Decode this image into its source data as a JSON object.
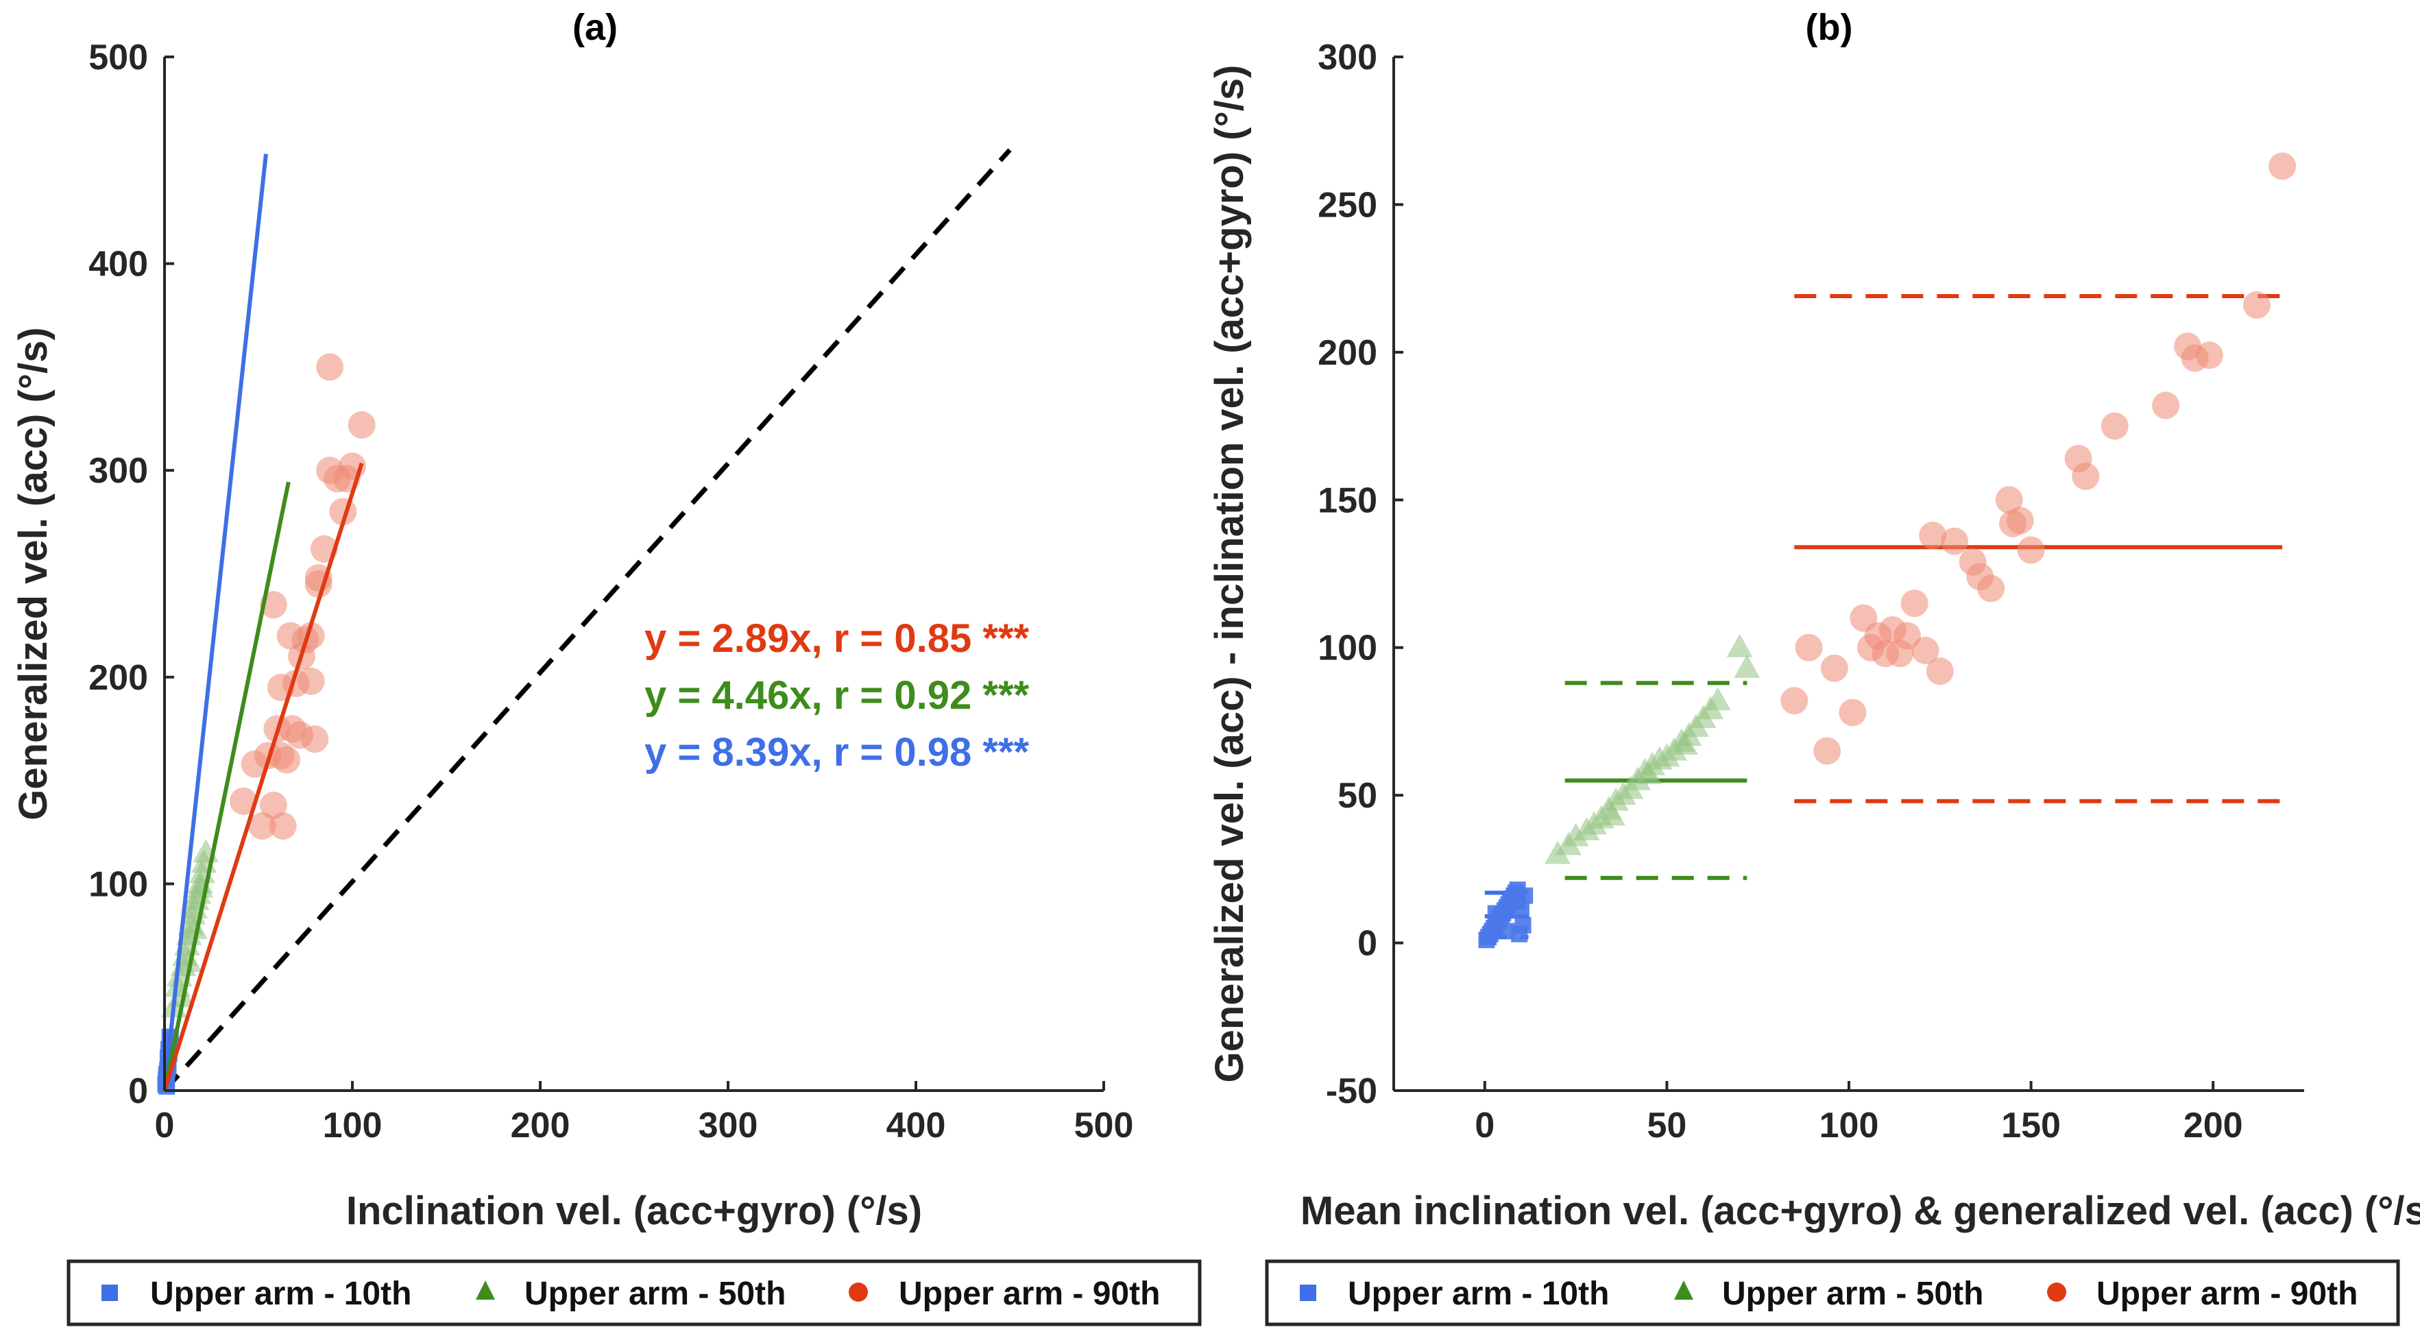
{
  "colors": {
    "p10": "#3f6fe6",
    "p50": "#3e8c1c",
    "p90": "#e03a12",
    "p10_light": "#4a78ea",
    "p50_light": "#92c27f",
    "p90_light": "#ef8a74",
    "axis": "#262626"
  },
  "legend": {
    "items": [
      {
        "key": "p10",
        "marker": "square",
        "label": "Upper arm - 10th"
      },
      {
        "key": "p50",
        "marker": "triangle",
        "label": "Upper arm - 50th"
      },
      {
        "key": "p90",
        "marker": "circle",
        "label": "Upper arm - 90th"
      }
    ]
  },
  "chart_data": [
    {
      "id": "a",
      "type": "scatter",
      "title": "(a)",
      "xlabel": "Inclination vel. (acc+gyro) (°/s)",
      "ylabel": "Generalized vel. (acc) (°/s)",
      "xlim": [
        0,
        500
      ],
      "ylim": [
        0,
        500
      ],
      "xticks": [
        0,
        100,
        200,
        300,
        400,
        500
      ],
      "yticks": [
        0,
        100,
        200,
        300,
        400,
        500
      ],
      "identity_line": {
        "from": [
          0,
          0
        ],
        "to": [
          450,
          455
        ],
        "style": "dashed",
        "color": "#000000"
      },
      "regression_lines": [
        {
          "series": "p10",
          "slope": 8.39,
          "x_end": 54
        },
        {
          "series": "p50",
          "slope": 4.46,
          "x_end": 66
        },
        {
          "series": "p90",
          "slope": 2.89,
          "x_end": 105
        }
      ],
      "annotations": [
        {
          "series": "p90",
          "text": "y = 2.89x, r = 0.85 ***"
        },
        {
          "series": "p50",
          "text": "y = 4.46x, r = 0.92 ***"
        },
        {
          "series": "p10",
          "text": "y = 8.39x, r = 0.98 ***"
        }
      ],
      "series": [
        {
          "name": "Upper arm - 10th",
          "key": "p10",
          "marker": "square",
          "x": [
            0.5,
            1,
            1.5,
            2,
            2.5,
            3,
            1,
            2,
            0.8,
            1.8,
            2.2,
            3.2,
            1.2,
            2.8
          ],
          "y": [
            3,
            6,
            10,
            14,
            18,
            22,
            8,
            12,
            5,
            16,
            20,
            25,
            2,
            26
          ]
        },
        {
          "name": "Upper arm - 50th",
          "key": "p50",
          "marker": "triangle",
          "x": [
            5,
            7,
            8,
            10,
            11,
            12,
            13,
            14,
            15,
            16,
            17,
            18,
            19,
            20,
            21,
            22,
            9,
            13,
            16,
            19
          ],
          "y": [
            40,
            50,
            55,
            60,
            65,
            70,
            75,
            80,
            85,
            88,
            92,
            95,
            100,
            105,
            110,
            115,
            45,
            62,
            78,
            98
          ]
        },
        {
          "name": "Upper arm - 90th",
          "key": "p90",
          "marker": "circle",
          "x": [
            42,
            48,
            52,
            55,
            58,
            60,
            62,
            63,
            65,
            67,
            70,
            72,
            75,
            78,
            80,
            82,
            85,
            88,
            92,
            95,
            100,
            105,
            58,
            62,
            68,
            73,
            78,
            82,
            88,
            97
          ],
          "y": [
            140,
            158,
            128,
            162,
            235,
            175,
            195,
            128,
            160,
            220,
            197,
            172,
            218,
            198,
            170,
            245,
            262,
            350,
            296,
            280,
            302,
            322,
            138,
            162,
            175,
            210,
            220,
            248,
            300,
            296
          ]
        }
      ]
    },
    {
      "id": "b",
      "type": "scatter",
      "title": "(b)",
      "xlabel": "Mean inclination vel. (acc+gyro) & generalized vel. (acc) (°/s)",
      "ylabel": "Generalized vel. (acc) - inclination vel. (acc+gyro) (°/s)",
      "xlim": [
        -25,
        225
      ],
      "ylim": [
        -50,
        300
      ],
      "xticks": [
        0,
        50,
        100,
        150,
        200
      ],
      "yticks": [
        -50,
        0,
        50,
        100,
        150,
        200,
        250,
        300
      ],
      "agreement_lines": [
        {
          "series": "p10",
          "mean": 9,
          "lower": 2,
          "upper": 17,
          "x_range": [
            0,
            12
          ]
        },
        {
          "series": "p50",
          "mean": 55,
          "lower": 22,
          "upper": 88,
          "x_range": [
            22,
            72
          ]
        },
        {
          "series": "p90",
          "mean": 134,
          "lower": 48,
          "upper": 219,
          "x_range": [
            85,
            219
          ]
        }
      ],
      "series": [
        {
          "name": "Upper arm - 10th",
          "key": "p10",
          "marker": "square",
          "x": [
            0.5,
            1,
            1.5,
            2,
            2.5,
            3,
            3.5,
            4,
            4.5,
            5,
            5.5,
            6,
            6.5,
            7,
            7.5,
            8,
            8.5,
            9,
            9.5,
            10,
            10.5,
            11,
            3,
            6,
            9
          ],
          "y": [
            1,
            2,
            3,
            4,
            5,
            6,
            7,
            8,
            9,
            10,
            11,
            12,
            13,
            14,
            15,
            16,
            17,
            18,
            3,
            11,
            6,
            16,
            10,
            4,
            14
          ]
        },
        {
          "name": "Upper arm - 50th",
          "key": "p50",
          "marker": "triangle",
          "x": [
            20,
            23,
            25,
            28,
            30,
            32,
            34,
            36,
            38,
            40,
            42,
            44,
            46,
            48,
            50,
            52,
            54,
            56,
            58,
            60,
            62,
            64,
            70,
            72,
            35,
            45,
            55
          ],
          "y": [
            30,
            33,
            36,
            38,
            40,
            42,
            45,
            48,
            50,
            52,
            55,
            58,
            60,
            62,
            63,
            65,
            68,
            70,
            73,
            76,
            79,
            82,
            100,
            93,
            43,
            57,
            67
          ]
        },
        {
          "name": "Upper arm - 90th",
          "key": "p90",
          "marker": "circle",
          "x": [
            85,
            89,
            94,
            96,
            101,
            104,
            106,
            108,
            110,
            112,
            114,
            116,
            118,
            121,
            123,
            125,
            129,
            134,
            136,
            139,
            144,
            145,
            147,
            150,
            163,
            165,
            173,
            187,
            193,
            195,
            199,
            212,
            219
          ],
          "y": [
            82,
            100,
            65,
            93,
            78,
            110,
            100,
            104,
            98,
            106,
            98,
            104,
            115,
            99,
            138,
            92,
            136,
            129,
            124,
            120,
            150,
            142,
            143,
            133,
            164,
            158,
            175,
            182,
            202,
            198,
            199,
            216,
            263
          ]
        }
      ]
    }
  ]
}
